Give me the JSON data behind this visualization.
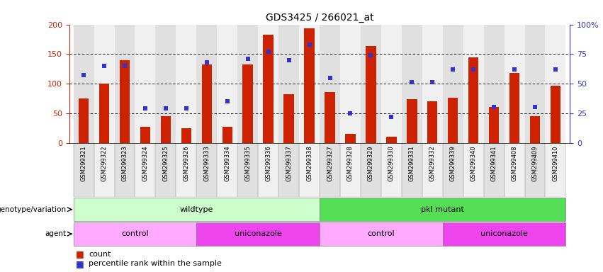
{
  "title": "GDS3425 / 266021_at",
  "samples": [
    "GSM299321",
    "GSM299322",
    "GSM299323",
    "GSM299324",
    "GSM299325",
    "GSM299326",
    "GSM299333",
    "GSM299334",
    "GSM299335",
    "GSM299336",
    "GSM299337",
    "GSM299338",
    "GSM299327",
    "GSM299328",
    "GSM299329",
    "GSM299330",
    "GSM299331",
    "GSM299332",
    "GSM299339",
    "GSM299340",
    "GSM299341",
    "GSM299408",
    "GSM299409",
    "GSM299410"
  ],
  "count_values": [
    75,
    100,
    140,
    27,
    45,
    25,
    133,
    27,
    133,
    183,
    82,
    193,
    86,
    15,
    163,
    10,
    74,
    70,
    76,
    144,
    61,
    118,
    45,
    97
  ],
  "percentile_values": [
    57,
    65,
    65,
    29,
    29,
    29,
    68,
    35,
    71,
    77,
    70,
    83,
    55,
    25,
    74,
    22,
    51,
    51,
    62,
    62,
    30,
    62,
    30,
    62
  ],
  "bar_color": "#cc2200",
  "dot_color": "#3333cc",
  "left_ylim": [
    0,
    200
  ],
  "right_ylim": [
    0,
    100
  ],
  "left_yticks": [
    0,
    50,
    100,
    150,
    200
  ],
  "right_yticks": [
    0,
    25,
    50,
    75,
    100
  ],
  "right_yticklabels": [
    "0",
    "25",
    "50",
    "75",
    "100%"
  ],
  "grid_values": [
    50,
    100,
    150
  ],
  "genotype_groups": [
    {
      "label": "wildtype",
      "start": 0,
      "end": 12,
      "color": "#ccffcc"
    },
    {
      "label": "pkl mutant",
      "start": 12,
      "end": 24,
      "color": "#55dd55"
    }
  ],
  "agent_groups": [
    {
      "label": "control",
      "start": 0,
      "end": 6,
      "color": "#ffaaff"
    },
    {
      "label": "uniconazole",
      "start": 6,
      "end": 12,
      "color": "#ee44ee"
    },
    {
      "label": "control",
      "start": 12,
      "end": 18,
      "color": "#ffaaff"
    },
    {
      "label": "uniconazole",
      "start": 18,
      "end": 24,
      "color": "#ee44ee"
    }
  ],
  "legend_count_label": "count",
  "legend_percentile_label": "percentile rank within the sample",
  "genotype_label": "genotype/variation",
  "agent_label": "agent",
  "bar_width": 0.5,
  "tick_bg_even": "#e0e0e0",
  "tick_bg_odd": "#f0f0f0"
}
